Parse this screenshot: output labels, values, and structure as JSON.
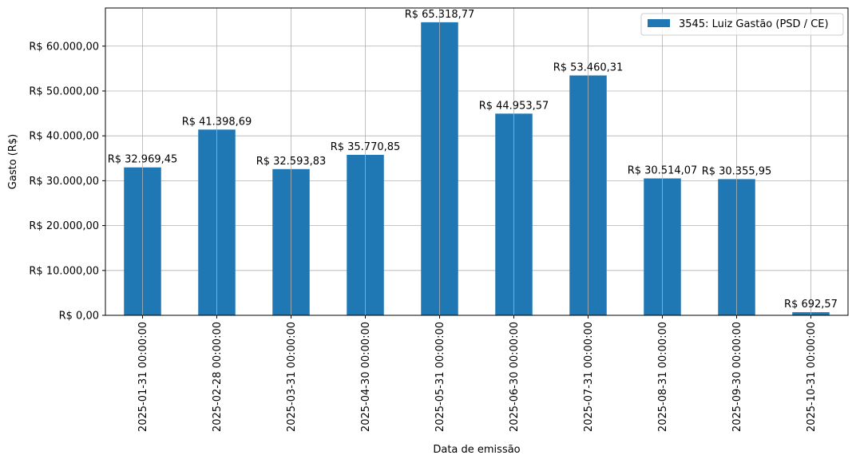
{
  "chart_data": {
    "type": "bar",
    "categories": [
      "2025-01-31 00:00:00",
      "2025-02-28 00:00:00",
      "2025-03-31 00:00:00",
      "2025-04-30 00:00:00",
      "2025-05-31 00:00:00",
      "2025-06-30 00:00:00",
      "2025-07-31 00:00:00",
      "2025-08-31 00:00:00",
      "2025-09-30 00:00:00",
      "2025-10-31 00:00:00"
    ],
    "series": [
      {
        "name": "3545: Luiz Gastão (PSD / CE)",
        "color": "#1f77b4",
        "values": [
          32969.45,
          41398.69,
          32593.83,
          35770.85,
          65318.77,
          44953.57,
          53460.31,
          30514.07,
          30355.95,
          692.57
        ],
        "labels": [
          "R$ 32.969,45",
          "R$ 41.398,69",
          "R$ 32.593,83",
          "R$ 35.770,85",
          "R$ 65.318,77",
          "R$ 44.953,57",
          "R$ 53.460,31",
          "R$ 30.514,07",
          "R$ 30.355,95",
          "R$ 692,57"
        ]
      }
    ],
    "xlabel": "Data de emissão",
    "ylabel": "Gasto (R$)",
    "ylim": [
      0,
      68500
    ],
    "yticks": [
      0,
      10000,
      20000,
      30000,
      40000,
      50000,
      60000
    ],
    "ytick_labels": [
      "R$ 0,00",
      "R$ 10.000,00",
      "R$ 20.000,00",
      "R$ 30.000,00",
      "R$ 40.000,00",
      "R$ 50.000,00",
      "R$ 60.000,00"
    ],
    "grid": true,
    "legend": "top-right"
  }
}
